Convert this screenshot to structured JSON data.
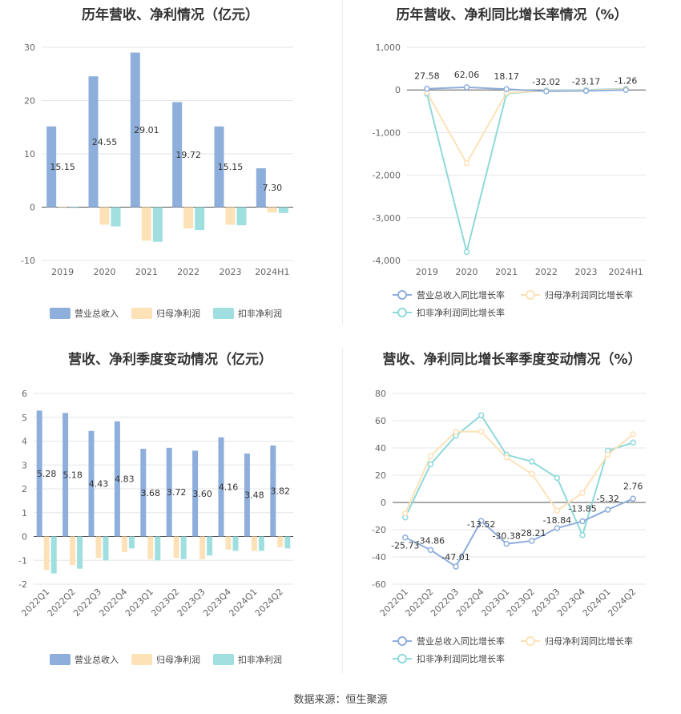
{
  "footer": {
    "source": "数据来源：恒生聚源"
  },
  "chart_data": [
    {
      "type": "bar",
      "title": "历年营收、净利情况（亿元）",
      "categories": [
        "2019",
        "2020",
        "2021",
        "2022",
        "2023",
        "2024H1"
      ],
      "ylim": [
        -10,
        30
      ],
      "yticks": [
        -10,
        0,
        10,
        20,
        30
      ],
      "legend_position": "bottom",
      "grid": true,
      "series": [
        {
          "name": "营业总收入",
          "color": "#8eaedb",
          "values": [
            15.15,
            24.55,
            29.01,
            19.72,
            15.15,
            7.3
          ],
          "labels": [
            "15.15",
            "24.55",
            "29.01",
            "19.72",
            "15.15",
            "7.30"
          ]
        },
        {
          "name": "归母净利润",
          "color": "#fde2b8",
          "values": [
            -0.1,
            -3.3,
            -6.3,
            -4.0,
            -3.3,
            -1.0
          ]
        },
        {
          "name": "扣非净利润",
          "color": "#9fdfe0",
          "values": [
            -0.1,
            -3.6,
            -6.5,
            -4.3,
            -3.4,
            -1.1
          ]
        }
      ]
    },
    {
      "type": "line",
      "title": "历年营收、净利同比增长率情况（%）",
      "categories": [
        "2019",
        "2020",
        "2021",
        "2022",
        "2023",
        "2024H1"
      ],
      "ylim": [
        -4000,
        1000
      ],
      "yticks": [
        -4000,
        -3000,
        -2000,
        -1000,
        0,
        1000
      ],
      "ytick_labels": [
        "-4,000",
        "-3,000",
        "-2,000",
        "-1,000",
        "0",
        "1,000"
      ],
      "legend_position": "bottom",
      "grid": true,
      "series": [
        {
          "name": "营业总收入同比增长率",
          "color": "#8eaedb",
          "values": [
            27.58,
            62.06,
            18.17,
            -32.02,
            -23.17,
            -1.26
          ],
          "labels": [
            "27.58",
            "62.06",
            "18.17",
            "-32.02",
            "-23.17",
            "-1.26"
          ]
        },
        {
          "name": "归母净利润同比增长率",
          "color": "#fde2b8",
          "values": [
            -60,
            -1720,
            -70,
            -20,
            -10,
            20
          ]
        },
        {
          "name": "扣非净利润同比增长率",
          "color": "#8fd9da",
          "values": [
            -90,
            -3800,
            -90,
            -10,
            0,
            30
          ]
        }
      ]
    },
    {
      "type": "bar",
      "title": "营收、净利季度变动情况（亿元）",
      "categories": [
        "2022Q1",
        "2022Q2",
        "2022Q3",
        "2022Q4",
        "2023Q1",
        "2023Q2",
        "2023Q3",
        "2023Q4",
        "2024Q1",
        "2024Q2"
      ],
      "ylim": [
        -2,
        6
      ],
      "yticks": [
        -2,
        -1,
        0,
        1,
        2,
        3,
        4,
        5,
        6
      ],
      "legend_position": "bottom",
      "grid": true,
      "series": [
        {
          "name": "营业总收入",
          "color": "#8eaedb",
          "values": [
            5.28,
            5.18,
            4.43,
            4.83,
            3.68,
            3.72,
            3.6,
            4.16,
            3.48,
            3.82
          ],
          "labels": [
            "5.28",
            "5.18",
            "4.43",
            "4.83",
            "3.68",
            "3.72",
            "3.60",
            "4.16",
            "3.48",
            "3.82"
          ]
        },
        {
          "name": "归母净利润",
          "color": "#fde2b8",
          "values": [
            -1.4,
            -1.2,
            -0.9,
            -0.65,
            -0.95,
            -0.9,
            -0.95,
            -0.55,
            -0.6,
            -0.45
          ]
        },
        {
          "name": "扣非净利润",
          "color": "#9fdfe0",
          "values": [
            -1.55,
            -1.35,
            -1.0,
            -0.5,
            -1.0,
            -0.95,
            -0.8,
            -0.6,
            -0.6,
            -0.5
          ]
        }
      ]
    },
    {
      "type": "line",
      "title": "营收、净利同比增长率季度变动情况（%）",
      "categories": [
        "2022Q1",
        "2022Q2",
        "2022Q3",
        "2022Q4",
        "2023Q1",
        "2023Q2",
        "2023Q3",
        "2023Q4",
        "2024Q1",
        "2024Q2"
      ],
      "ylim": [
        -60,
        80
      ],
      "yticks": [
        -60,
        -40,
        -20,
        0,
        20,
        40,
        60,
        80
      ],
      "legend_position": "bottom",
      "grid": true,
      "series": [
        {
          "name": "营业总收入同比增长率",
          "color": "#8eaedb",
          "values": [
            -25.73,
            -34.86,
            -47.01,
            -13.52,
            -30.38,
            -28.21,
            -18.84,
            -13.85,
            -5.32,
            2.76
          ],
          "labels": [
            "-25.73",
            "-34.86",
            "-47.01",
            "-13.52",
            "-30.38",
            "-28.21",
            "-18.84",
            "-13.85",
            "-5.32",
            "2.76"
          ]
        },
        {
          "name": "归母净利润同比增长率",
          "color": "#fde2b8",
          "values": [
            -8,
            34,
            52,
            52,
            33,
            21,
            -6,
            7,
            35,
            50
          ]
        },
        {
          "name": "扣非净利润同比增长率",
          "color": "#8fd9da",
          "values": [
            -11,
            28,
            49,
            64,
            35,
            30,
            18,
            -24,
            38,
            44
          ]
        }
      ]
    }
  ]
}
